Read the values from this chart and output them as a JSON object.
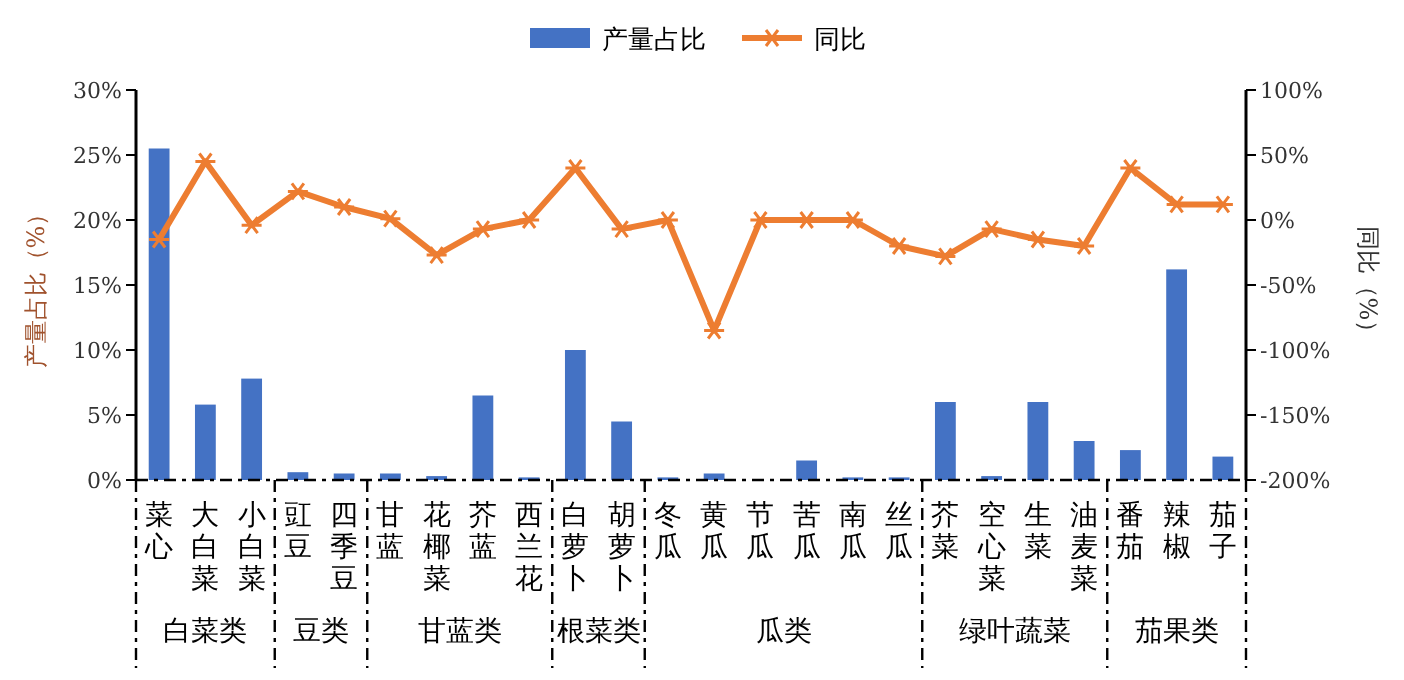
{
  "chart_data": {
    "type": "bar",
    "categories": [
      "菜心",
      "大白菜",
      "小白菜",
      "豇豆",
      "四季豆",
      "甘蓝",
      "花椰菜",
      "芥蓝",
      "西兰花",
      "白萝卜",
      "胡萝卜",
      "冬瓜",
      "黄瓜",
      "节瓜",
      "苦瓜",
      "南瓜",
      "丝瓜",
      "芥菜",
      "空心菜",
      "生菜",
      "油麦菜",
      "番茄",
      "辣椒",
      "茄子"
    ],
    "series": [
      {
        "name": "产量占比",
        "color": "#4472c4",
        "values": [
          25.5,
          5.8,
          7.8,
          0.6,
          0.5,
          0.5,
          0.3,
          6.5,
          0.2,
          10,
          4.5,
          0.2,
          0.5,
          null,
          1.5,
          0.2,
          0.2,
          6.0,
          0.3,
          6.0,
          3.0,
          2.3,
          16.2,
          1.8
        ]
      },
      {
        "name": "同比",
        "type": "line",
        "axis": "y2",
        "color": "#ed7d31",
        "marker": "cross",
        "values": [
          -15,
          45,
          -4,
          22,
          10,
          1,
          -27,
          -7,
          0,
          40,
          -7,
          0,
          -85,
          0,
          0,
          0,
          -20,
          -28,
          -7,
          -15,
          -20,
          40,
          12,
          12
        ]
      }
    ],
    "ylabel": "产量占比（%）",
    "y2label": "同比（%）",
    "ylim": [
      0,
      30
    ],
    "yticks": [
      {
        "value": 0,
        "label": "0%"
      },
      {
        "value": 5,
        "label": "5%"
      },
      {
        "value": 10,
        "label": "10%"
      },
      {
        "value": 15,
        "label": "15%"
      },
      {
        "value": 20,
        "label": "20%"
      },
      {
        "value": 25,
        "label": "25%"
      },
      {
        "value": 30,
        "label": "30%"
      }
    ],
    "y2lim": [
      -200,
      100
    ],
    "y2ticks": [
      {
        "value": -200,
        "label": "-200%"
      },
      {
        "value": -150,
        "label": "-150%"
      },
      {
        "value": -100,
        "label": "-100%"
      },
      {
        "value": -50,
        "label": "-50%"
      },
      {
        "value": 0,
        "label": "0%"
      },
      {
        "value": 50,
        "label": "50%"
      },
      {
        "value": 100,
        "label": "100%"
      }
    ],
    "annotations": [
      "白菜类",
      "豆类",
      "甘蓝类",
      "根菜类",
      "瓜类",
      "绿叶蔬菜",
      "茄果类"
    ],
    "legend": "top",
    "grid": false
  }
}
